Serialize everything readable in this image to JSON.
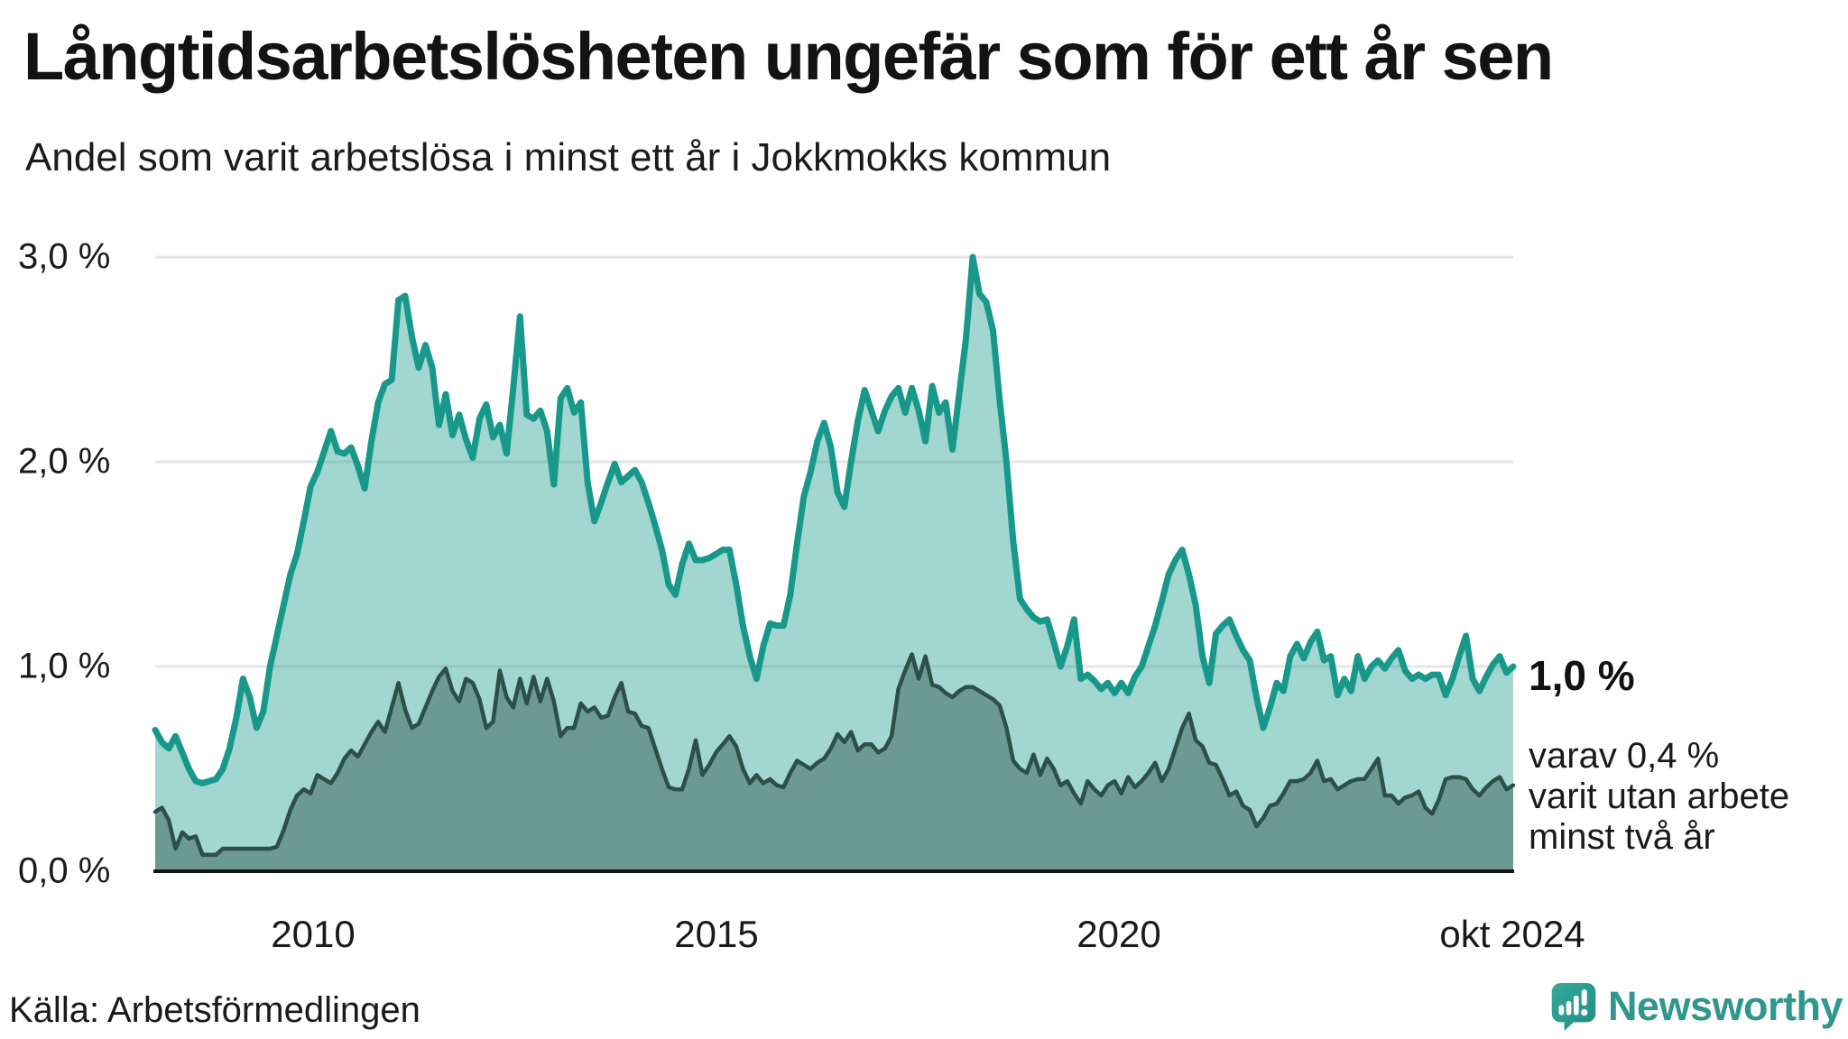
{
  "header": {
    "title": "Långtidsarbetslösheten ungefär som för ett år sen",
    "subtitle": "Andel som varit arbetslösa i minst ett år i Jokkmokks kommun"
  },
  "chart_data": {
    "type": "area",
    "title": "Långtidsarbetslösheten ungefär som för ett år sen",
    "subtitle": "Andel som varit arbetslösa i minst ett år i Jokkmokks kommun",
    "unit": "%",
    "frequency": "monthly",
    "start": "2008-01",
    "end": "2024-10",
    "x_axis": {
      "tick_labels": [
        "2010",
        "2015",
        "2020",
        "okt 2024"
      ]
    },
    "y_axis": {
      "tick_labels": [
        "3,0 %",
        "2,0 %",
        "1,0 %",
        "0,0 %"
      ],
      "min": 0,
      "max": 3,
      "gridlines": true
    },
    "series": [
      {
        "id": "arbetslosa-minst-ett-ar",
        "label": "minst ett år",
        "color": "#17988a",
        "fill": "rgba(23,152,138,0.40)",
        "line_width": 7,
        "end_value": 1.0,
        "values": [
          0.69,
          0.63,
          0.6,
          0.66,
          0.58,
          0.5,
          0.44,
          0.43,
          0.44,
          0.45,
          0.5,
          0.6,
          0.75,
          0.94,
          0.85,
          0.7,
          0.78,
          1.0,
          1.15,
          1.3,
          1.45,
          1.55,
          1.71,
          1.88,
          1.95,
          2.05,
          2.15,
          2.05,
          2.04,
          2.07,
          1.98,
          1.87,
          2.1,
          2.29,
          2.38,
          2.4,
          2.79,
          2.81,
          2.61,
          2.46,
          2.57,
          2.46,
          2.18,
          2.33,
          2.13,
          2.23,
          2.11,
          2.02,
          2.21,
          2.28,
          2.12,
          2.18,
          2.04,
          2.36,
          2.71,
          2.23,
          2.21,
          2.25,
          2.15,
          1.89,
          2.31,
          2.36,
          2.24,
          2.29,
          1.9,
          1.71,
          1.8,
          1.9,
          1.99,
          1.9,
          1.93,
          1.96,
          1.9,
          1.8,
          1.69,
          1.57,
          1.4,
          1.35,
          1.5,
          1.6,
          1.52,
          1.52,
          1.53,
          1.55,
          1.57,
          1.57,
          1.4,
          1.2,
          1.05,
          0.94,
          1.1,
          1.21,
          1.2,
          1.2,
          1.35,
          1.6,
          1.83,
          1.95,
          2.1,
          2.19,
          2.07,
          1.85,
          1.78,
          2.0,
          2.2,
          2.35,
          2.25,
          2.15,
          2.25,
          2.32,
          2.36,
          2.24,
          2.36,
          2.25,
          2.1,
          2.37,
          2.24,
          2.29,
          2.06,
          2.33,
          2.6,
          3.0,
          2.82,
          2.78,
          2.64,
          2.3,
          2.0,
          1.61,
          1.33,
          1.28,
          1.24,
          1.22,
          1.23,
          1.12,
          1.0,
          1.1,
          1.23,
          0.94,
          0.96,
          0.93,
          0.89,
          0.92,
          0.87,
          0.92,
          0.87,
          0.95,
          1.0,
          1.1,
          1.2,
          1.32,
          1.45,
          1.52,
          1.57,
          1.45,
          1.3,
          1.05,
          0.92,
          1.16,
          1.2,
          1.23,
          1.15,
          1.08,
          1.03,
          0.85,
          0.7,
          0.8,
          0.92,
          0.88,
          1.05,
          1.11,
          1.04,
          1.12,
          1.17,
          1.03,
          1.05,
          0.86,
          0.94,
          0.88,
          1.05,
          0.94,
          1.0,
          1.03,
          0.99,
          1.04,
          1.08,
          0.98,
          0.94,
          0.96,
          0.94,
          0.96,
          0.96,
          0.86,
          0.94,
          1.05,
          1.15,
          0.94,
          0.88,
          0.95,
          1.01,
          1.05,
          0.97,
          1.0
        ]
      },
      {
        "id": "arbetslosa-minst-tva-ar",
        "label": "minst två år",
        "color": "#2d4f49",
        "fill": "rgba(45,79,73,0.45)",
        "line_width": 4.5,
        "end_value": 0.4,
        "values": [
          0.29,
          0.31,
          0.25,
          0.11,
          0.19,
          0.16,
          0.17,
          0.08,
          0.08,
          0.08,
          0.11,
          0.11,
          0.11,
          0.11,
          0.11,
          0.11,
          0.11,
          0.11,
          0.12,
          0.2,
          0.3,
          0.37,
          0.4,
          0.38,
          0.47,
          0.45,
          0.43,
          0.48,
          0.55,
          0.59,
          0.56,
          0.62,
          0.68,
          0.73,
          0.68,
          0.8,
          0.92,
          0.79,
          0.7,
          0.72,
          0.8,
          0.88,
          0.95,
          0.99,
          0.88,
          0.83,
          0.94,
          0.92,
          0.84,
          0.7,
          0.73,
          0.98,
          0.85,
          0.8,
          0.94,
          0.82,
          0.95,
          0.83,
          0.94,
          0.83,
          0.66,
          0.7,
          0.7,
          0.82,
          0.78,
          0.8,
          0.75,
          0.76,
          0.85,
          0.92,
          0.78,
          0.77,
          0.71,
          0.7,
          0.6,
          0.5,
          0.41,
          0.4,
          0.4,
          0.5,
          0.64,
          0.47,
          0.52,
          0.58,
          0.62,
          0.66,
          0.61,
          0.5,
          0.43,
          0.47,
          0.43,
          0.45,
          0.42,
          0.41,
          0.48,
          0.54,
          0.52,
          0.5,
          0.53,
          0.55,
          0.6,
          0.67,
          0.63,
          0.68,
          0.59,
          0.62,
          0.62,
          0.58,
          0.6,
          0.66,
          0.89,
          0.98,
          1.06,
          0.94,
          1.05,
          0.91,
          0.9,
          0.87,
          0.85,
          0.88,
          0.9,
          0.9,
          0.88,
          0.86,
          0.84,
          0.81,
          0.7,
          0.54,
          0.5,
          0.48,
          0.57,
          0.47,
          0.55,
          0.5,
          0.42,
          0.44,
          0.38,
          0.33,
          0.44,
          0.4,
          0.37,
          0.42,
          0.44,
          0.38,
          0.46,
          0.41,
          0.44,
          0.48,
          0.53,
          0.44,
          0.5,
          0.6,
          0.7,
          0.77,
          0.64,
          0.61,
          0.53,
          0.52,
          0.45,
          0.37,
          0.39,
          0.32,
          0.3,
          0.22,
          0.26,
          0.32,
          0.33,
          0.38,
          0.44,
          0.44,
          0.45,
          0.48,
          0.54,
          0.44,
          0.45,
          0.4,
          0.42,
          0.44,
          0.45,
          0.45,
          0.5,
          0.55,
          0.37,
          0.37,
          0.33,
          0.36,
          0.37,
          0.39,
          0.31,
          0.28,
          0.35,
          0.45,
          0.46,
          0.46,
          0.45,
          0.4,
          0.37,
          0.41,
          0.44,
          0.46,
          0.4,
          0.42
        ]
      }
    ],
    "annotations": {
      "end_value": "1,0 %",
      "note_lines": [
        "varav 0,4 %",
        "varit utan arbete",
        "minst två år"
      ]
    }
  },
  "footer": {
    "source": "Källa: Arbetsförmedlingen",
    "brand": "Newsworthy"
  },
  "colors": {
    "accent_teal": "#17988a",
    "dark_teal": "#2d4f49",
    "logo_teal": "#2f978c",
    "grid": "#e4e6e8",
    "baseline": "#141414"
  }
}
